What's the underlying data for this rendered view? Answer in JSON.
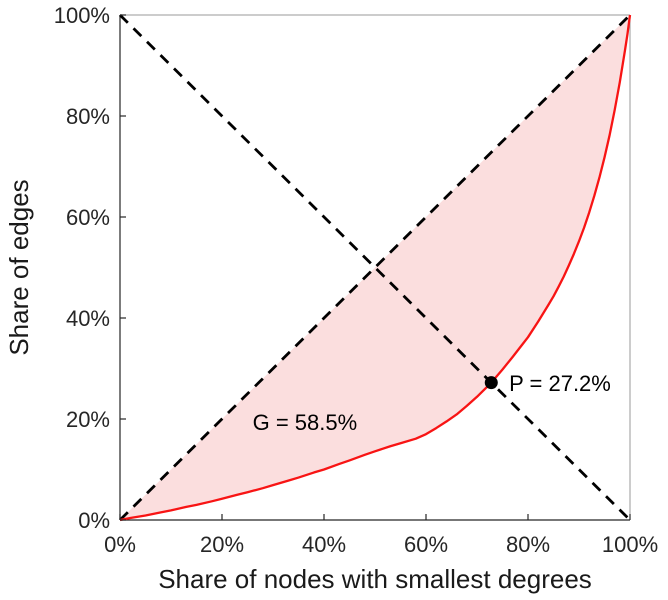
{
  "chart_data": {
    "type": "line",
    "title": "",
    "xlabel": "Share of nodes with smallest degrees",
    "ylabel": "Share of edges",
    "xlim": [
      0,
      100
    ],
    "ylim": [
      0,
      100
    ],
    "grid": false,
    "legend": "none",
    "x_ticks": [
      {
        "value": 0,
        "label": "0%"
      },
      {
        "value": 20,
        "label": "20%"
      },
      {
        "value": 40,
        "label": "40%"
      },
      {
        "value": 60,
        "label": "60%"
      },
      {
        "value": 80,
        "label": "80%"
      },
      {
        "value": 100,
        "label": "100%"
      }
    ],
    "y_ticks": [
      {
        "value": 0,
        "label": "0%"
      },
      {
        "value": 20,
        "label": "20%"
      },
      {
        "value": 40,
        "label": "40%"
      },
      {
        "value": 60,
        "label": "60%"
      },
      {
        "value": 80,
        "label": "80%"
      },
      {
        "value": 100,
        "label": "100%"
      }
    ],
    "series": [
      {
        "id": "equality-line",
        "name": "line of equality (diagonal)",
        "style": "dashed",
        "color": "#000000",
        "width": 2.8,
        "points": [
          [
            0,
            0
          ],
          [
            100,
            100
          ]
        ]
      },
      {
        "id": "anti-diagonal",
        "name": "anti-diagonal reference line",
        "style": "dashed",
        "color": "#000000",
        "width": 2.8,
        "points": [
          [
            0,
            100
          ],
          [
            100,
            0
          ]
        ]
      },
      {
        "id": "lorenz",
        "name": "Lorenz curve of degree distribution",
        "style": "solid",
        "color": "#f81414",
        "width": 2.3,
        "points": [
          [
            0,
            0
          ],
          [
            2,
            0.4
          ],
          [
            5,
            0.9
          ],
          [
            8,
            1.5
          ],
          [
            10,
            1.9
          ],
          [
            13,
            2.6
          ],
          [
            15,
            3.0
          ],
          [
            18,
            3.7
          ],
          [
            20,
            4.2
          ],
          [
            23,
            5.0
          ],
          [
            25,
            5.5
          ],
          [
            28,
            6.3
          ],
          [
            30,
            6.9
          ],
          [
            33,
            7.8
          ],
          [
            35,
            8.4
          ],
          [
            38,
            9.4
          ],
          [
            40,
            10.0
          ],
          [
            43,
            11.1
          ],
          [
            45,
            11.8
          ],
          [
            48,
            12.9
          ],
          [
            50,
            13.6
          ],
          [
            53,
            14.6
          ],
          [
            55,
            15.2
          ],
          [
            58,
            16.1
          ],
          [
            60,
            17.0
          ],
          [
            62,
            18.2
          ],
          [
            64,
            19.5
          ],
          [
            66,
            20.9
          ],
          [
            68,
            22.6
          ],
          [
            70,
            24.4
          ],
          [
            72.8,
            27.2
          ],
          [
            75,
            29.8
          ],
          [
            77,
            32.3
          ],
          [
            79,
            34.9
          ],
          [
            80,
            36.2
          ],
          [
            82,
            39.3
          ],
          [
            84,
            42.6
          ],
          [
            85,
            44.3
          ],
          [
            86,
            46.2
          ],
          [
            87,
            48.2
          ],
          [
            88,
            50.4
          ],
          [
            89,
            52.7
          ],
          [
            90,
            55.2
          ],
          [
            91,
            57.9
          ],
          [
            92,
            60.9
          ],
          [
            93,
            64.2
          ],
          [
            94,
            67.8
          ],
          [
            95,
            71.8
          ],
          [
            96,
            76.2
          ],
          [
            97,
            81.2
          ],
          [
            98,
            86.7
          ],
          [
            99,
            92.9
          ],
          [
            99.5,
            96.2
          ],
          [
            100,
            100
          ]
        ]
      }
    ],
    "fill_between": {
      "upper": "equality-line",
      "lower": "lorenz",
      "color": "#f5a8a8",
      "opacity": 0.38
    },
    "point": {
      "x": 72.8,
      "y": 27.2,
      "radius": 6.5,
      "color": "#000000",
      "meaning": "intersection of Lorenz curve and anti-diagonal"
    },
    "annotations": {
      "gini": {
        "text": "G = 58.5%",
        "x": 26,
        "y": 17.8
      },
      "point": {
        "text": "P = 27.2%",
        "x": 76.3,
        "y": 25.5
      }
    },
    "stats": {
      "gini_coefficient": "58.5%",
      "p_value": "27.2%"
    },
    "colors": {
      "axis_dark": "#262626",
      "box_light": "#9a9a9a",
      "background": "#ffffff"
    }
  }
}
